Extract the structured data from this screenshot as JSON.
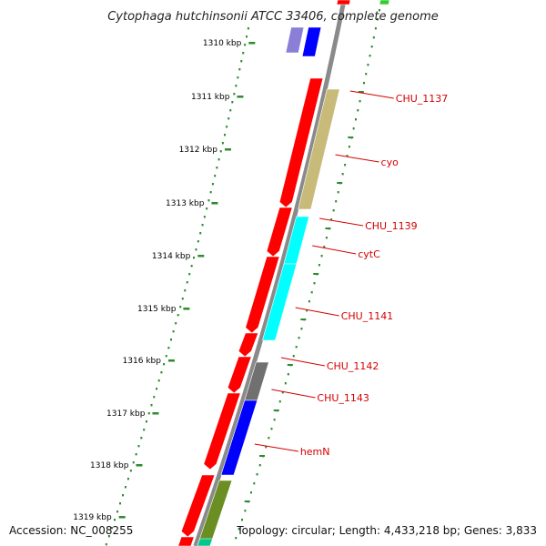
{
  "title": "Cytophaga hutchinsonii ATCC 33406, complete genome",
  "footer": {
    "accession": "Accession: NC_008255",
    "summary": "Topology: circular; Length: 4,433,218 bp; Genes: 3,833"
  },
  "colors": {
    "backbone": "#8a8a8a",
    "gc_ticks": "#2e8b2e",
    "forward_cds": "#ff0000",
    "gene_label": "#d40000"
  },
  "kbp_labels": [
    "1310 kbp",
    "1311 kbp",
    "1312 kbp",
    "1313 kbp",
    "1314 kbp",
    "1315 kbp",
    "1316 kbp",
    "1317 kbp",
    "1318 kbp",
    "1319 kbp"
  ],
  "gene_labels": [
    "CHU_1137",
    "cyo",
    "CHU_1139",
    "cytC",
    "CHU_1141",
    "CHU_1142",
    "CHU_1143",
    "hemN"
  ],
  "features": {
    "cds": [
      {
        "name": "CHU_1137",
        "color": "#ff0000"
      },
      {
        "name": "cyo",
        "color": "#ff0000"
      },
      {
        "name": "CHU_1139",
        "color": "#ff0000"
      },
      {
        "name": "cytC",
        "color": "#ff0000"
      },
      {
        "name": "CHU_1141",
        "color": "#ff0000"
      },
      {
        "name": "CHU_1142",
        "color": "#ff0000"
      },
      {
        "name": "CHU_1143",
        "color": "#ff0000"
      },
      {
        "name": "hemN",
        "color": "#ff0000"
      }
    ],
    "cog": [
      {
        "name": "CHU_1137",
        "color": "#c8bb7a"
      },
      {
        "name": "CHU_1139",
        "color": "#00ffff"
      },
      {
        "name": "cytC",
        "color": "#00ffff"
      },
      {
        "name": "CHU_1141",
        "color": "#00ffff"
      },
      {
        "name": "CHU_1142",
        "color": "#707070"
      },
      {
        "name": "CHU_1143",
        "color": "#0000ff"
      },
      {
        "name": "hemN",
        "color": "#6b8e23"
      }
    ]
  }
}
